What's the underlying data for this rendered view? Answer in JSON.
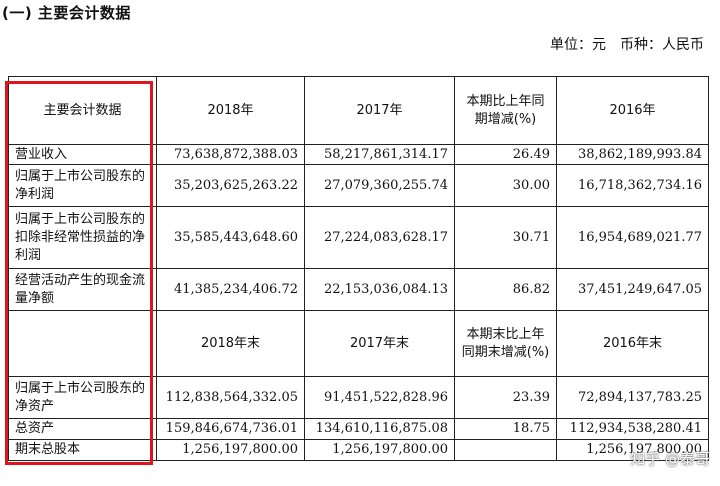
{
  "heading": "(一) 主要会计数据",
  "unit": "单位：元　币种：人民币",
  "header1": [
    "主要会计数据",
    "2018年",
    "2017年",
    "本期比上年同期增减(%)",
    "2016年"
  ],
  "rows1": [
    {
      "label": "营业收入",
      "v2018": "73,638,872,388.03",
      "v2017": "58,217,861,314.17",
      "chg": "26.49",
      "v2016": "38,862,189,993.84"
    },
    {
      "label": "归属于上市公司股东的净利润",
      "v2018": "35,203,625,263.22",
      "v2017": "27,079,360,255.74",
      "chg": "30.00",
      "v2016": "16,718,362,734.16"
    },
    {
      "label": "归属于上市公司股东的扣除非经常性损益的净利润",
      "v2018": "35,585,443,648.60",
      "v2017": "27,224,083,628.17",
      "chg": "30.71",
      "v2016": "16,954,689,021.77"
    },
    {
      "label": "经营活动产生的现金流量净额",
      "v2018": "41,385,234,406.72",
      "v2017": "22,153,036,084.13",
      "chg": "86.82",
      "v2016": "37,451,249,647.05"
    }
  ],
  "header2": [
    "",
    "2018年末",
    "2017年末",
    "本期末比上年同期末增减(%)",
    "2016年末"
  ],
  "rows2": [
    {
      "label": "归属于上市公司股东的净资产",
      "v2018": "112,838,564,332.05",
      "v2017": "91,451,522,828.96",
      "chg": "23.39",
      "v2016": "72,894,137,783.25"
    },
    {
      "label": "总资产",
      "v2018": "159,846,674,736.01",
      "v2017": "134,610,116,875.08",
      "chg": "18.75",
      "v2016": "112,934,538,280.41"
    },
    {
      "label": "期末总股本",
      "v2018": "1,256,197,800.00",
      "v2017": "1,256,197,800.00",
      "chg": "",
      "v2016": "1,256,197,800.00"
    }
  ],
  "watermark": "知乎 @泰哥"
}
